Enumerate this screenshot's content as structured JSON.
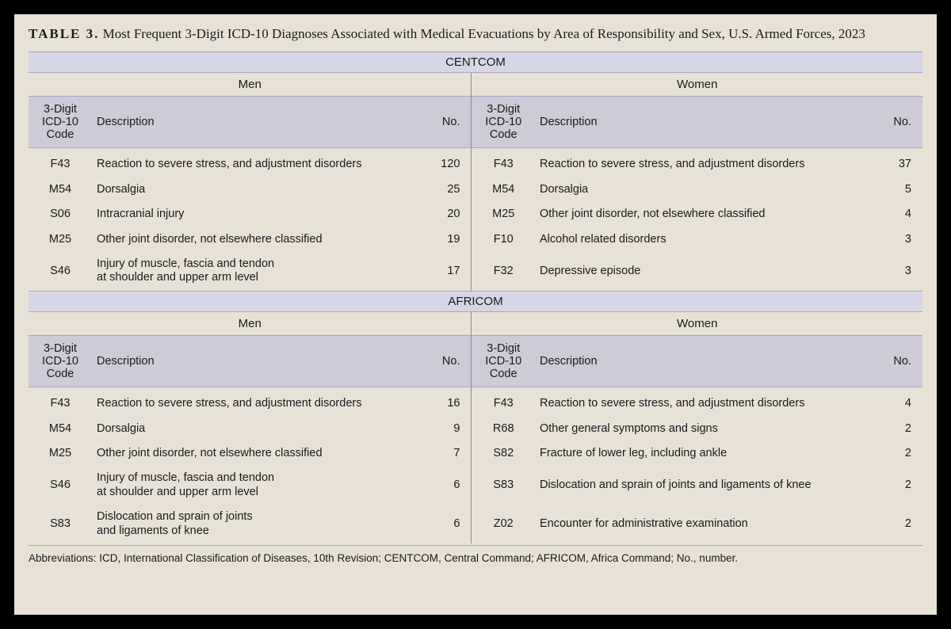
{
  "colors": {
    "page_bg": "#000000",
    "panel_bg": "#e8e2d6",
    "band_bg": "#d7d6e6",
    "header_bg": "#cfcad8",
    "rule": "#a9a4c0",
    "vr": "#8e8aa0",
    "text": "#1a1a1a"
  },
  "typography": {
    "title_family": "Times New Roman",
    "body_family": "Arial",
    "title_fontsize_pt": 13,
    "body_fontsize_pt": 11
  },
  "title": {
    "label": "TABLE 3.",
    "text": "Most Frequent 3-Digit ICD-10 Diagnoses Associated with Medical Evacuations by Area of Responsibility and Sex, U.S. Armed Forces, 2023"
  },
  "columns": {
    "code": "3-Digit ICD-10 Code",
    "desc": "Description",
    "no": "No."
  },
  "sex": {
    "men": "Men",
    "women": "Women"
  },
  "regions": [
    {
      "name": "CENTCOM",
      "men": [
        {
          "code": "F43",
          "desc": "Reaction to severe stress, and adjustment disorders",
          "no": 120
        },
        {
          "code": "M54",
          "desc": "Dorsalgia",
          "no": 25
        },
        {
          "code": "S06",
          "desc": "Intracranial injury",
          "no": 20
        },
        {
          "code": "M25",
          "desc": "Other joint disorder, not elsewhere classified",
          "no": 19
        },
        {
          "code": "S46",
          "desc": "Injury of muscle, fascia and tendon\nat shoulder and upper arm level",
          "no": 17
        }
      ],
      "women": [
        {
          "code": "F43",
          "desc": "Reaction to severe stress, and adjustment disorders",
          "no": 37
        },
        {
          "code": "M54",
          "desc": "Dorsalgia",
          "no": 5
        },
        {
          "code": "M25",
          "desc": "Other joint disorder, not elsewhere classified",
          "no": 4
        },
        {
          "code": "F10",
          "desc": "Alcohol related disorders",
          "no": 3
        },
        {
          "code": "F32",
          "desc": "Depressive episode",
          "no": 3
        }
      ]
    },
    {
      "name": "AFRICOM",
      "men": [
        {
          "code": "F43",
          "desc": "Reaction to severe stress, and adjustment disorders",
          "no": 16
        },
        {
          "code": "M54",
          "desc": "Dorsalgia",
          "no": 9
        },
        {
          "code": "M25",
          "desc": "Other joint disorder, not elsewhere classified",
          "no": 7
        },
        {
          "code": "S46",
          "desc": "Injury of muscle, fascia and tendon\nat shoulder and upper arm level",
          "no": 6
        },
        {
          "code": "S83",
          "desc": "Dislocation and sprain of joints\nand ligaments of knee",
          "no": 6
        }
      ],
      "women": [
        {
          "code": "F43",
          "desc": "Reaction to severe stress, and adjustment disorders",
          "no": 4
        },
        {
          "code": "R68",
          "desc": "Other general symptoms and signs",
          "no": 2
        },
        {
          "code": "S82",
          "desc": "Fracture of lower leg, including ankle",
          "no": 2
        },
        {
          "code": "S83",
          "desc": "Dislocation and sprain of joints and ligaments of knee",
          "no": 2
        },
        {
          "code": "Z02",
          "desc": "Encounter for administrative examination",
          "no": 2
        }
      ]
    }
  ],
  "footnote": "Abbreviations: ICD, International Classification of Diseases, 10th Revision; CENTCOM, Central Command; AFRICOM, Africa Command; No., number."
}
